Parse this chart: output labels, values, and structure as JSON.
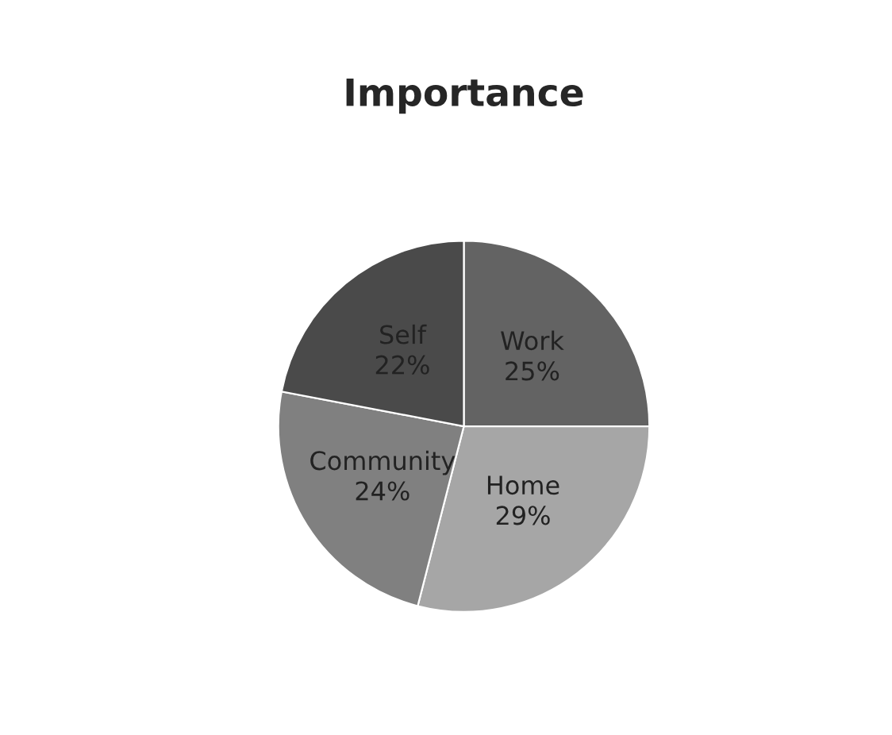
{
  "chart_data": {
    "type": "pie",
    "title": "Importance",
    "categories": [
      "Work",
      "Home",
      "Community",
      "Self"
    ],
    "values": [
      25,
      29,
      24,
      22
    ],
    "colors": [
      "#636363",
      "#a6a6a6",
      "#808080",
      "#4a4a4a"
    ],
    "value_labels": [
      "25%",
      "29%",
      "24%",
      "22%"
    ],
    "legend": false
  }
}
